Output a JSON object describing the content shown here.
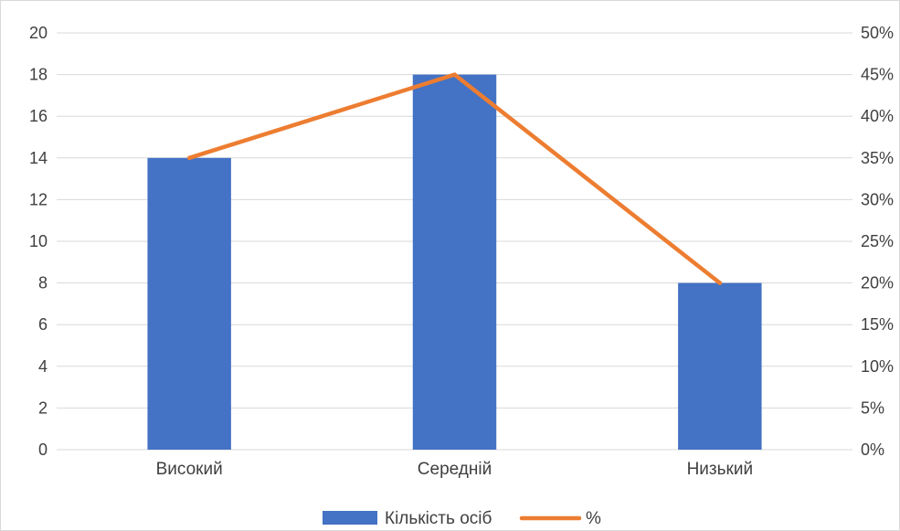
{
  "chart_data": {
    "type": "bar+line",
    "title": "",
    "categories": [
      "Високий",
      "Середній",
      "Низький"
    ],
    "series": [
      {
        "name": "Кількість осіб",
        "type": "bar",
        "axis": "left",
        "color": "#4472C4",
        "values": [
          14,
          18,
          8
        ]
      },
      {
        "name": "%",
        "type": "line",
        "axis": "right",
        "color": "#ED7D31",
        "values": [
          0.35,
          0.45,
          0.2
        ]
      }
    ],
    "y_left": {
      "label": "",
      "ylim": [
        0,
        20
      ],
      "ticks": [
        0,
        2,
        4,
        6,
        8,
        10,
        12,
        14,
        16,
        18,
        20
      ],
      "tick_labels": [
        "0",
        "2",
        "4",
        "6",
        "8",
        "10",
        "12",
        "14",
        "16",
        "18",
        "20"
      ]
    },
    "y_right": {
      "label": "",
      "ylim": [
        0,
        0.5
      ],
      "ticks": [
        0,
        0.05,
        0.1,
        0.15,
        0.2,
        0.25,
        0.3,
        0.35,
        0.4,
        0.45,
        0.5
      ],
      "tick_labels": [
        "0%",
        "5%",
        "10%",
        "15%",
        "20%",
        "25%",
        "30%",
        "35%",
        "40%",
        "45%",
        "50%"
      ]
    },
    "grid": true,
    "gridline_color": "#d9d9d9",
    "legend": {
      "position": "bottom",
      "entries": [
        "Кількість осіб",
        "%"
      ]
    }
  }
}
